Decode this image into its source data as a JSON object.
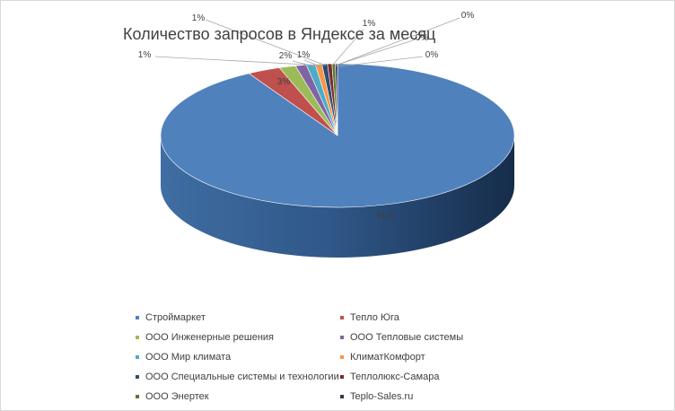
{
  "chart_data": {
    "type": "pie",
    "title": "Количество запросов в Яндексе за месяц",
    "series": [
      {
        "name": "Строймаркет",
        "value": 91,
        "label": "91%",
        "color": "#4F81BD"
      },
      {
        "name": "Тепло Юга",
        "value": 3,
        "label": "3%",
        "color": "#C0504D"
      },
      {
        "name": "ООО Инженерные решения",
        "value": 1.5,
        "label": "2%",
        "color": "#9BBB59"
      },
      {
        "name": "ООО Тепловые системы",
        "value": 1,
        "label": "1%",
        "color": "#8064A2"
      },
      {
        "name": "ООО Мир климата",
        "value": 0.8,
        "label": "1%",
        "color": "#4BACC6"
      },
      {
        "name": "КлиматКомфорт",
        "value": 0.6,
        "label": "1%",
        "color": "#F79646"
      },
      {
        "name": "ООО Специальные системы и технологии",
        "value": 0.5,
        "label": "1%",
        "color": "#2C4D75"
      },
      {
        "name": "Теплолюкс-Самара",
        "value": 0.4,
        "label": "0%",
        "color": "#772C2A"
      },
      {
        "name": "ООО Энертек",
        "value": 0.3,
        "label": "0%",
        "color": "#5F7530"
      },
      {
        "name": "Teplo-Sales.ru",
        "value": 0.2,
        "label": "0%",
        "color": "#3F3151"
      }
    ],
    "legend_position": "bottom",
    "style": "3d-pie"
  }
}
